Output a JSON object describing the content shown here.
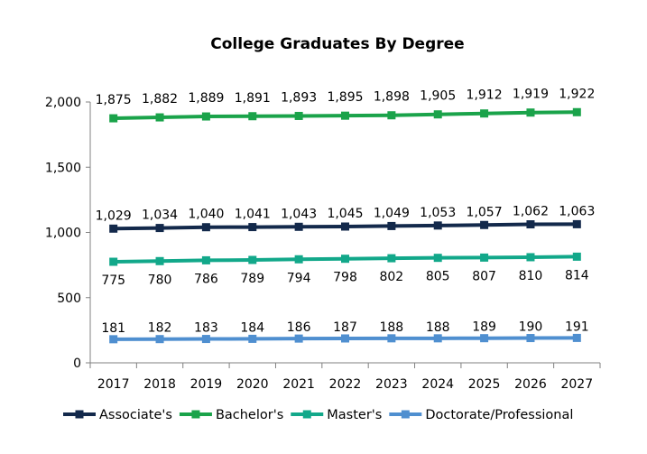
{
  "chart_data": {
    "type": "line",
    "title": "College Graduates By Degree",
    "xlabel": "",
    "ylabel": "",
    "x": [
      "2017",
      "2018",
      "2019",
      "2020",
      "2021",
      "2022",
      "2023",
      "2024",
      "2025",
      "2026",
      "2027"
    ],
    "ylim": [
      0,
      2000
    ],
    "yticks": [
      "0",
      "500",
      "1,000",
      "1,500",
      "2,000"
    ],
    "ytick_values": [
      0,
      500,
      1000,
      1500,
      2000
    ],
    "grid": false,
    "legend_position": "bottom",
    "series": [
      {
        "name": "Associate's",
        "color": "#13294b",
        "values": [
          1029,
          1034,
          1040,
          1041,
          1043,
          1045,
          1049,
          1053,
          1057,
          1062,
          1063
        ],
        "labels": [
          "1,029",
          "1,034",
          "1,040",
          "1,041",
          "1,043",
          "1,045",
          "1,049",
          "1,053",
          "1,057",
          "1,062",
          "1,063"
        ]
      },
      {
        "name": "Bachelor's",
        "color": "#1aa34a",
        "values": [
          1875,
          1882,
          1889,
          1891,
          1893,
          1895,
          1898,
          1905,
          1912,
          1919,
          1922
        ],
        "labels": [
          "1,875",
          "1,882",
          "1,889",
          "1,891",
          "1,893",
          "1,895",
          "1,898",
          "1,905",
          "1,912",
          "1,919",
          "1,922"
        ]
      },
      {
        "name": "Master's",
        "color": "#12a88a",
        "values": [
          775,
          780,
          786,
          789,
          794,
          798,
          802,
          805,
          807,
          810,
          814
        ],
        "labels": [
          "775",
          "780",
          "786",
          "789",
          "794",
          "798",
          "802",
          "805",
          "807",
          "810",
          "814"
        ]
      },
      {
        "name": "Doctorate/Professional",
        "color": "#4f8fd0",
        "values": [
          181,
          182,
          183,
          184,
          186,
          187,
          188,
          188,
          189,
          190,
          191
        ],
        "labels": [
          "181",
          "182",
          "183",
          "184",
          "186",
          "187",
          "188",
          "188",
          "189",
          "190",
          "191"
        ]
      }
    ]
  }
}
